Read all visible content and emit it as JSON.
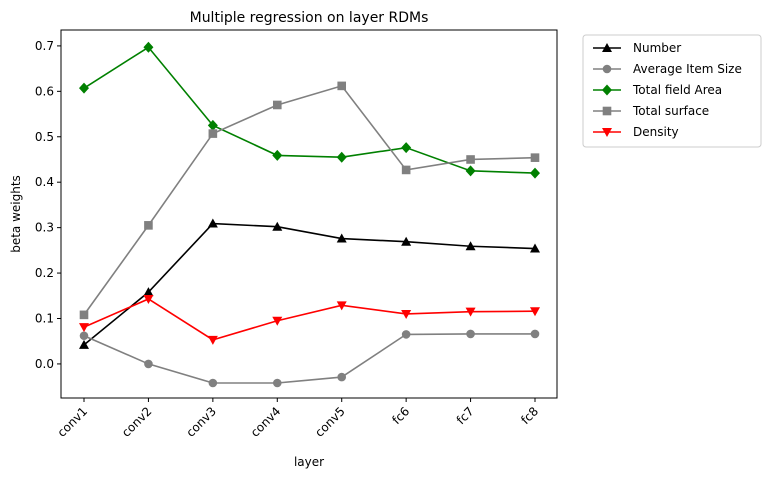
{
  "chart_data": {
    "type": "line",
    "title": "Multiple regression on layer RDMs",
    "xlabel": "layer",
    "ylabel": "beta weights",
    "categories": [
      "conv1",
      "conv2",
      "conv3",
      "conv4",
      "conv5",
      "fc6",
      "fc7",
      "fc8"
    ],
    "ylim": [
      -0.075,
      0.735
    ],
    "yticks": [
      0.0,
      0.1,
      0.2,
      0.3,
      0.4,
      0.5,
      0.6,
      0.7
    ],
    "ytick_labels": [
      "0.0",
      "0.1",
      "0.2",
      "0.3",
      "0.4",
      "0.5",
      "0.6",
      "0.7"
    ],
    "grid": false,
    "legend_position": "outside upper right",
    "series": [
      {
        "name": "Number",
        "color": "#000000",
        "marker": "triangle-up",
        "values": [
          0.042,
          0.158,
          0.309,
          0.302,
          0.276,
          0.269,
          0.259,
          0.254
        ]
      },
      {
        "name": "Average Item Size",
        "color": "#808080",
        "marker": "circle",
        "values": [
          0.062,
          0.0,
          -0.042,
          -0.042,
          -0.029,
          0.065,
          0.066,
          0.066
        ]
      },
      {
        "name": "Total field Area",
        "color": "#008000",
        "marker": "diamond",
        "values": [
          0.607,
          0.697,
          0.525,
          0.459,
          0.455,
          0.476,
          0.425,
          0.42
        ]
      },
      {
        "name": "Total surface",
        "color": "#808080",
        "marker": "square",
        "values": [
          0.108,
          0.305,
          0.507,
          0.57,
          0.612,
          0.427,
          0.45,
          0.454
        ]
      },
      {
        "name": "Density",
        "color": "#ff0000",
        "marker": "triangle-down",
        "values": [
          0.081,
          0.143,
          0.053,
          0.095,
          0.129,
          0.11,
          0.115,
          0.116
        ]
      }
    ]
  }
}
